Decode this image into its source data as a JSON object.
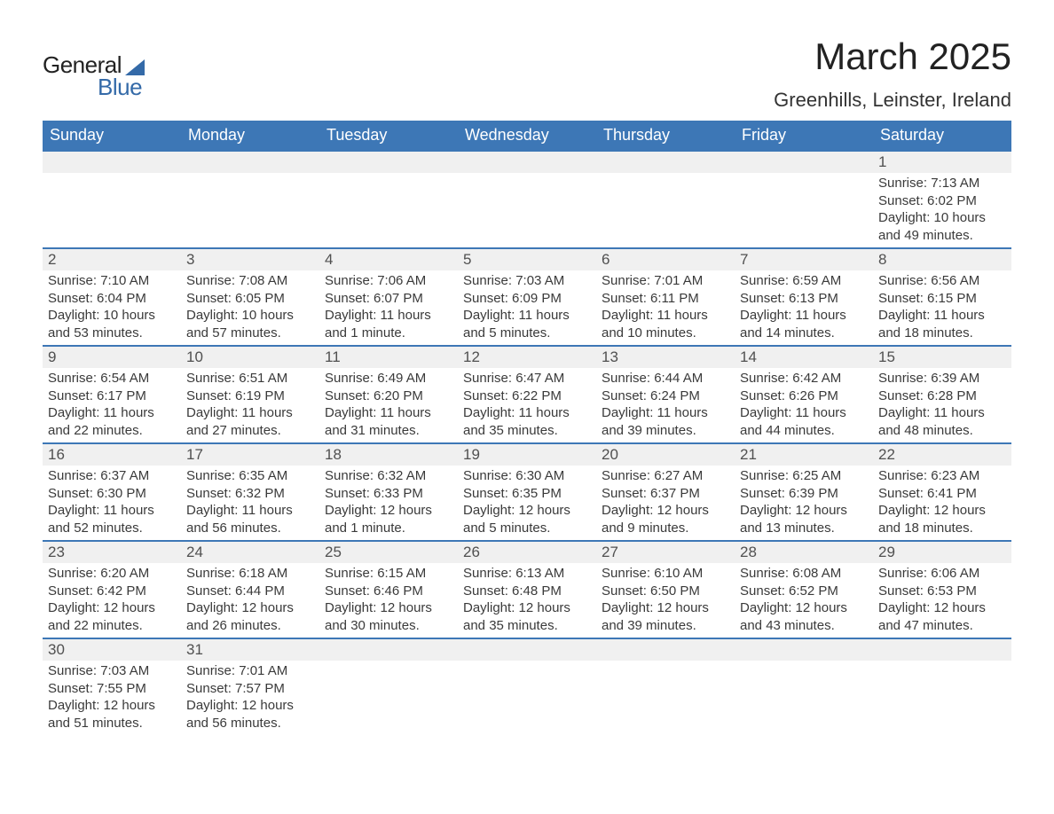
{
  "brand": {
    "word1": "General",
    "word2": "Blue"
  },
  "title": "March 2025",
  "location": "Greenhills, Leinster, Ireland",
  "colors": {
    "header_bg": "#3d77b6",
    "header_text": "#ffffff",
    "row_border": "#3d77b6",
    "daynum_bg": "#f0f0f0",
    "text": "#333333",
    "logo_blue": "#346aa8"
  },
  "typography": {
    "title_fontsize": 42,
    "location_fontsize": 22,
    "dayheader_fontsize": 18,
    "daynum_fontsize": 17,
    "content_fontsize": 15
  },
  "day_headers": [
    "Sunday",
    "Monday",
    "Tuesday",
    "Wednesday",
    "Thursday",
    "Friday",
    "Saturday"
  ],
  "weeks": [
    [
      {
        "day": "",
        "lines": []
      },
      {
        "day": "",
        "lines": []
      },
      {
        "day": "",
        "lines": []
      },
      {
        "day": "",
        "lines": []
      },
      {
        "day": "",
        "lines": []
      },
      {
        "day": "",
        "lines": []
      },
      {
        "day": "1",
        "lines": [
          "Sunrise: 7:13 AM",
          "Sunset: 6:02 PM",
          "Daylight: 10 hours and 49 minutes."
        ]
      }
    ],
    [
      {
        "day": "2",
        "lines": [
          "Sunrise: 7:10 AM",
          "Sunset: 6:04 PM",
          "Daylight: 10 hours and 53 minutes."
        ]
      },
      {
        "day": "3",
        "lines": [
          "Sunrise: 7:08 AM",
          "Sunset: 6:05 PM",
          "Daylight: 10 hours and 57 minutes."
        ]
      },
      {
        "day": "4",
        "lines": [
          "Sunrise: 7:06 AM",
          "Sunset: 6:07 PM",
          "Daylight: 11 hours and 1 minute."
        ]
      },
      {
        "day": "5",
        "lines": [
          "Sunrise: 7:03 AM",
          "Sunset: 6:09 PM",
          "Daylight: 11 hours and 5 minutes."
        ]
      },
      {
        "day": "6",
        "lines": [
          "Sunrise: 7:01 AM",
          "Sunset: 6:11 PM",
          "Daylight: 11 hours and 10 minutes."
        ]
      },
      {
        "day": "7",
        "lines": [
          "Sunrise: 6:59 AM",
          "Sunset: 6:13 PM",
          "Daylight: 11 hours and 14 minutes."
        ]
      },
      {
        "day": "8",
        "lines": [
          "Sunrise: 6:56 AM",
          "Sunset: 6:15 PM",
          "Daylight: 11 hours and 18 minutes."
        ]
      }
    ],
    [
      {
        "day": "9",
        "lines": [
          "Sunrise: 6:54 AM",
          "Sunset: 6:17 PM",
          "Daylight: 11 hours and 22 minutes."
        ]
      },
      {
        "day": "10",
        "lines": [
          "Sunrise: 6:51 AM",
          "Sunset: 6:19 PM",
          "Daylight: 11 hours and 27 minutes."
        ]
      },
      {
        "day": "11",
        "lines": [
          "Sunrise: 6:49 AM",
          "Sunset: 6:20 PM",
          "Daylight: 11 hours and 31 minutes."
        ]
      },
      {
        "day": "12",
        "lines": [
          "Sunrise: 6:47 AM",
          "Sunset: 6:22 PM",
          "Daylight: 11 hours and 35 minutes."
        ]
      },
      {
        "day": "13",
        "lines": [
          "Sunrise: 6:44 AM",
          "Sunset: 6:24 PM",
          "Daylight: 11 hours and 39 minutes."
        ]
      },
      {
        "day": "14",
        "lines": [
          "Sunrise: 6:42 AM",
          "Sunset: 6:26 PM",
          "Daylight: 11 hours and 44 minutes."
        ]
      },
      {
        "day": "15",
        "lines": [
          "Sunrise: 6:39 AM",
          "Sunset: 6:28 PM",
          "Daylight: 11 hours and 48 minutes."
        ]
      }
    ],
    [
      {
        "day": "16",
        "lines": [
          "Sunrise: 6:37 AM",
          "Sunset: 6:30 PM",
          "Daylight: 11 hours and 52 minutes."
        ]
      },
      {
        "day": "17",
        "lines": [
          "Sunrise: 6:35 AM",
          "Sunset: 6:32 PM",
          "Daylight: 11 hours and 56 minutes."
        ]
      },
      {
        "day": "18",
        "lines": [
          "Sunrise: 6:32 AM",
          "Sunset: 6:33 PM",
          "Daylight: 12 hours and 1 minute."
        ]
      },
      {
        "day": "19",
        "lines": [
          "Sunrise: 6:30 AM",
          "Sunset: 6:35 PM",
          "Daylight: 12 hours and 5 minutes."
        ]
      },
      {
        "day": "20",
        "lines": [
          "Sunrise: 6:27 AM",
          "Sunset: 6:37 PM",
          "Daylight: 12 hours and 9 minutes."
        ]
      },
      {
        "day": "21",
        "lines": [
          "Sunrise: 6:25 AM",
          "Sunset: 6:39 PM",
          "Daylight: 12 hours and 13 minutes."
        ]
      },
      {
        "day": "22",
        "lines": [
          "Sunrise: 6:23 AM",
          "Sunset: 6:41 PM",
          "Daylight: 12 hours and 18 minutes."
        ]
      }
    ],
    [
      {
        "day": "23",
        "lines": [
          "Sunrise: 6:20 AM",
          "Sunset: 6:42 PM",
          "Daylight: 12 hours and 22 minutes."
        ]
      },
      {
        "day": "24",
        "lines": [
          "Sunrise: 6:18 AM",
          "Sunset: 6:44 PM",
          "Daylight: 12 hours and 26 minutes."
        ]
      },
      {
        "day": "25",
        "lines": [
          "Sunrise: 6:15 AM",
          "Sunset: 6:46 PM",
          "Daylight: 12 hours and 30 minutes."
        ]
      },
      {
        "day": "26",
        "lines": [
          "Sunrise: 6:13 AM",
          "Sunset: 6:48 PM",
          "Daylight: 12 hours and 35 minutes."
        ]
      },
      {
        "day": "27",
        "lines": [
          "Sunrise: 6:10 AM",
          "Sunset: 6:50 PM",
          "Daylight: 12 hours and 39 minutes."
        ]
      },
      {
        "day": "28",
        "lines": [
          "Sunrise: 6:08 AM",
          "Sunset: 6:52 PM",
          "Daylight: 12 hours and 43 minutes."
        ]
      },
      {
        "day": "29",
        "lines": [
          "Sunrise: 6:06 AM",
          "Sunset: 6:53 PM",
          "Daylight: 12 hours and 47 minutes."
        ]
      }
    ],
    [
      {
        "day": "30",
        "lines": [
          "Sunrise: 7:03 AM",
          "Sunset: 7:55 PM",
          "Daylight: 12 hours and 51 minutes."
        ]
      },
      {
        "day": "31",
        "lines": [
          "Sunrise: 7:01 AM",
          "Sunset: 7:57 PM",
          "Daylight: 12 hours and 56 minutes."
        ]
      },
      {
        "day": "",
        "lines": []
      },
      {
        "day": "",
        "lines": []
      },
      {
        "day": "",
        "lines": []
      },
      {
        "day": "",
        "lines": []
      },
      {
        "day": "",
        "lines": []
      }
    ]
  ]
}
